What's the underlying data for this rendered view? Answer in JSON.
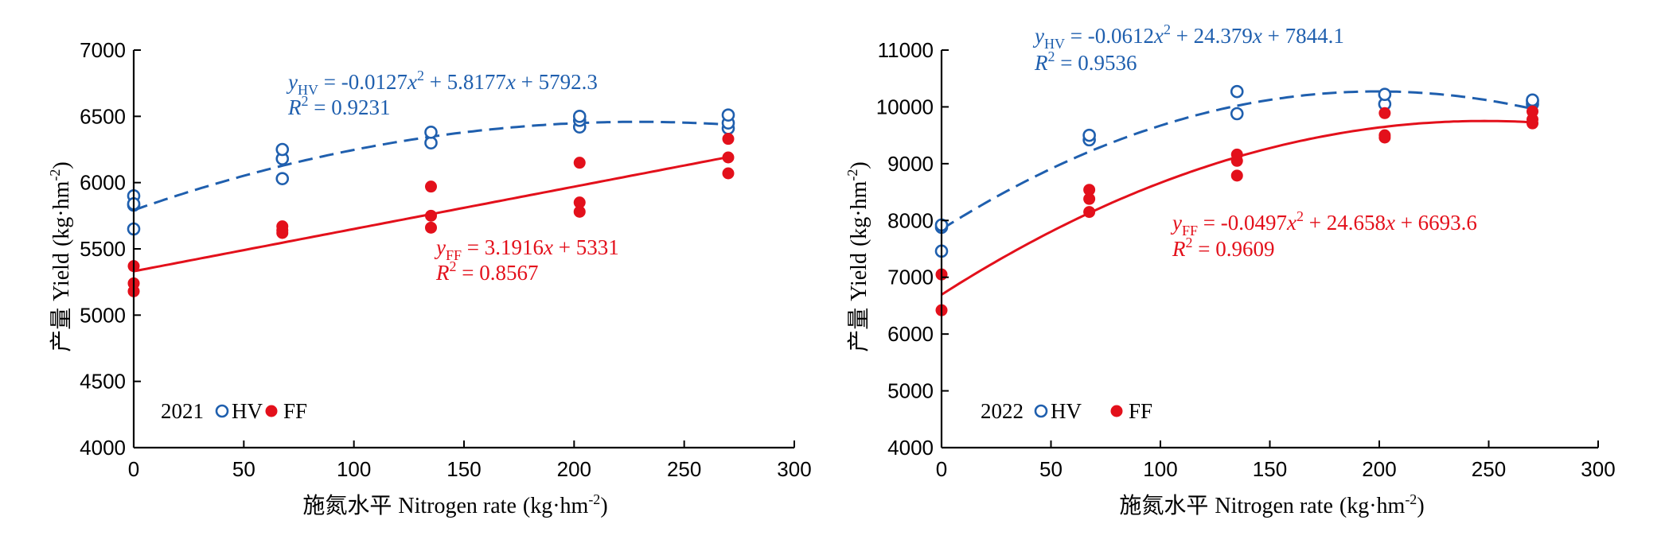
{
  "colors": {
    "hv": "#1f5fae",
    "ff": "#e3101b"
  },
  "chart_data": [
    {
      "type": "scatter",
      "year": "2021",
      "xlabel_cn": "施氮水平",
      "xlabel_en": "Nitrogen rate",
      "xunit": "(kg·hm",
      "xunit_sup": "-2",
      "xunit_end": ")",
      "ylabel_cn": "产量",
      "ylabel_en": "Yield",
      "yunit": "(kg·hm",
      "yunit_sup": "-2",
      "yunit_end": ")",
      "xlim": [
        0,
        300
      ],
      "ylim": [
        4000,
        7000
      ],
      "xticks": [
        0,
        50,
        100,
        150,
        200,
        250,
        300
      ],
      "yticks": [
        4000,
        4500,
        5000,
        5500,
        6000,
        6500,
        7000
      ],
      "series": [
        {
          "name": "HV",
          "marker": "open-circle",
          "x": [
            0,
            0,
            0,
            0,
            67.5,
            67.5,
            67.5,
            135,
            135,
            202.5,
            202.5,
            202.5,
            270,
            270,
            270
          ],
          "y": [
            5650,
            5830,
            5900,
            5840,
            6030,
            6180,
            6250,
            6300,
            6380,
            6420,
            6470,
            6500,
            6410,
            6450,
            6510
          ],
          "fit": {
            "type": "quadratic",
            "coef": [
              -0.0127,
              5.8177,
              5792.3
            ],
            "r2": 0.9231,
            "style": "dashed"
          }
        },
        {
          "name": "FF",
          "marker": "filled-circle",
          "x": [
            0,
            0,
            0,
            67.5,
            67.5,
            67.5,
            135,
            135,
            135,
            202.5,
            202.5,
            202.5,
            270,
            270,
            270
          ],
          "y": [
            5180,
            5240,
            5370,
            5620,
            5640,
            5670,
            5660,
            5750,
            5970,
            5780,
            5850,
            6150,
            6070,
            6190,
            6330
          ],
          "fit": {
            "type": "linear",
            "coef": [
              3.1916,
              5331
            ],
            "r2": 0.8567,
            "style": "solid"
          }
        }
      ],
      "eq_hv": {
        "prefix": "y",
        "sub": "HV",
        "p1": " = -0.0127",
        "x1": "x",
        "sup": "2",
        "p2": " + 5.8177",
        "x2": "x",
        "p3": " + 5792.3"
      },
      "r2_hv": {
        "r": "R",
        "sup": "2",
        "val": " = 0.9231"
      },
      "eq_ff": {
        "prefix": "y",
        "sub": "FF",
        "p1": " = 3.1916",
        "x1": "x",
        "p2": " + 5331"
      },
      "r2_ff": {
        "r": "R",
        "sup": "2",
        "val": " = 0.8567"
      },
      "legend": {
        "year": "2021",
        "hv": "HV",
        "ff": "FF"
      }
    },
    {
      "type": "scatter",
      "year": "2022",
      "xlabel_cn": "施氮水平",
      "xlabel_en": "Nitrogen rate",
      "xunit": "(kg·hm",
      "xunit_sup": "-2",
      "xunit_end": ")",
      "ylabel_cn": "产量",
      "ylabel_en": "Yield",
      "yunit": "(kg·hm",
      "yunit_sup": "-2",
      "yunit_end": ")",
      "xlim": [
        0,
        300
      ],
      "ylim": [
        4000,
        11000
      ],
      "xticks": [
        0,
        50,
        100,
        150,
        200,
        250,
        300
      ],
      "yticks": [
        4000,
        5000,
        6000,
        7000,
        8000,
        9000,
        10000,
        11000
      ],
      "series": [
        {
          "name": "HV",
          "marker": "open-circle",
          "x": [
            0,
            0,
            0,
            67.5,
            67.5,
            135,
            135,
            202.5,
            202.5,
            270,
            270,
            270
          ],
          "y": [
            7460,
            7880,
            7920,
            9420,
            9500,
            9880,
            10270,
            10050,
            10220,
            10050,
            10100,
            10120
          ],
          "fit": {
            "type": "quadratic",
            "coef": [
              -0.0612,
              24.379,
              7844.1
            ],
            "r2": 0.9536,
            "style": "dashed"
          }
        },
        {
          "name": "FF",
          "marker": "filled-circle",
          "x": [
            0,
            0,
            67.5,
            67.5,
            67.5,
            135,
            135,
            135,
            202.5,
            202.5,
            202.5,
            270,
            270,
            270
          ],
          "y": [
            6420,
            7050,
            8150,
            8380,
            8540,
            8790,
            9050,
            9160,
            9460,
            9500,
            9890,
            9710,
            9780,
            9920
          ],
          "fit": {
            "type": "quadratic",
            "coef": [
              -0.0497,
              24.658,
              6693.6
            ],
            "r2": 0.9609,
            "style": "solid"
          }
        }
      ],
      "eq_hv": {
        "prefix": "y",
        "sub": "HV",
        "p1": " = -0.0612",
        "x1": "x",
        "sup": "2",
        "p2": " + 24.379",
        "x2": "x",
        "p3": " + 7844.1"
      },
      "r2_hv": {
        "r": "R",
        "sup": "2",
        "val": " = 0.9536"
      },
      "eq_ff": {
        "prefix": "y",
        "sub": "FF",
        "p1": " = -0.0497",
        "x1": "x",
        "sup": "2",
        "p2": " + 24.658",
        "x2": "x",
        "p3": " + 6693.6"
      },
      "r2_ff": {
        "r": "R",
        "sup": "2",
        "val": " = 0.9609"
      },
      "legend": {
        "year": "2022",
        "hv": "HV",
        "ff": "FF"
      }
    }
  ]
}
